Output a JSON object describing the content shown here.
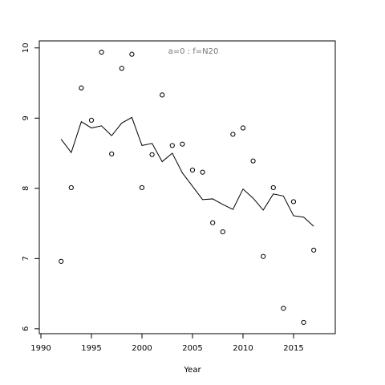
{
  "chart_data": {
    "type": "line",
    "title": "a=0  :  f=N20",
    "x_label": "Year",
    "x": [
      1992,
      1993,
      1994,
      1995,
      1996,
      1997,
      1998,
      1999,
      2000,
      2001,
      2002,
      2003,
      2004,
      2005,
      2006,
      2007,
      2008,
      2009,
      2010,
      2011,
      2012,
      2013,
      2014,
      2015,
      2016,
      2017
    ],
    "series": [
      {
        "mode": "points",
        "color": "#000000",
        "values": [
          6.96,
          8.01,
          9.43,
          8.97,
          9.94,
          8.49,
          9.71,
          9.91,
          8.01,
          8.48,
          9.33,
          8.61,
          8.63,
          8.26,
          8.23,
          7.51,
          7.38,
          8.77,
          8.86,
          8.39,
          7.03,
          8.01,
          6.29,
          7.81,
          6.09,
          7.12
        ]
      },
      {
        "mode": "line",
        "color": "#000000",
        "values": [
          8.7,
          8.51,
          8.95,
          8.86,
          8.89,
          8.75,
          8.93,
          9.01,
          8.61,
          8.64,
          8.38,
          8.5,
          8.22,
          8.03,
          7.84,
          7.85,
          7.77,
          7.7,
          7.99,
          7.86,
          7.69,
          7.92,
          7.89,
          7.61,
          7.59,
          7.46
        ]
      }
    ],
    "xlim": [
      1989.84,
      2019.13
    ],
    "ylim": [
      5.93,
      10.1
    ],
    "xticks": [
      1990,
      1995,
      2000,
      2005,
      2010,
      2015
    ],
    "yticks": [
      6,
      7,
      8,
      9,
      10
    ]
  }
}
